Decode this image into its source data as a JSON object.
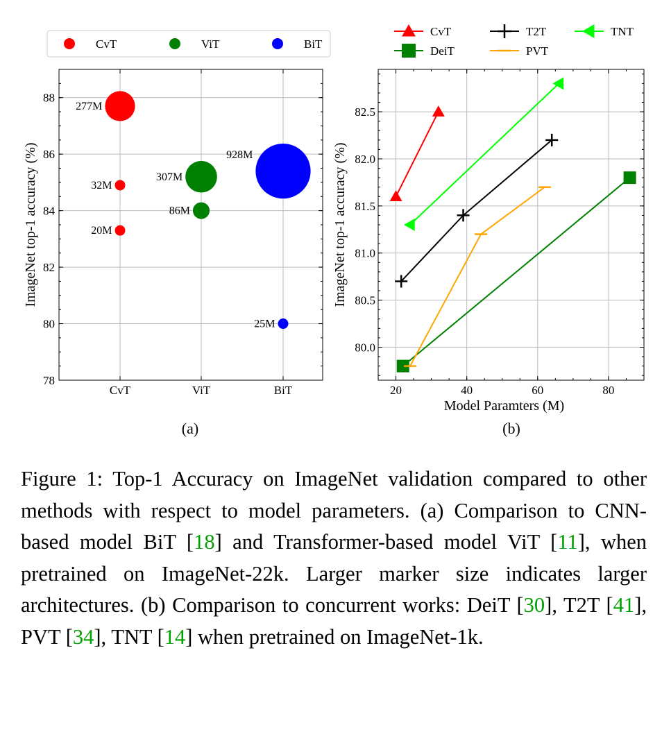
{
  "chart_data": [
    {
      "type": "scatter",
      "panel_label": "(a)",
      "ylabel": "ImageNet top-1 accuracy (%)",
      "xlabel": "",
      "categories": [
        "CvT",
        "ViT",
        "BiT"
      ],
      "ylim": [
        78,
        89
      ],
      "y_ticks": [
        78,
        80,
        82,
        84,
        86,
        88
      ],
      "grid": true,
      "legend": {
        "placement": "top",
        "entries": [
          {
            "name": "CvT",
            "color": "#ff0000"
          },
          {
            "name": "ViT",
            "color": "#008000"
          },
          {
            "name": "BiT",
            "color": "#0000ff"
          }
        ]
      },
      "series": [
        {
          "name": "CvT",
          "color": "#ff0000",
          "points": [
            {
              "category": "CvT",
              "y": 87.7,
              "params_m": 277,
              "label": "277M"
            },
            {
              "category": "CvT",
              "y": 84.9,
              "params_m": 32,
              "label": "32M"
            },
            {
              "category": "CvT",
              "y": 83.3,
              "params_m": 20,
              "label": "20M"
            }
          ]
        },
        {
          "name": "ViT",
          "color": "#008000",
          "points": [
            {
              "category": "ViT",
              "y": 85.2,
              "params_m": 307,
              "label": "307M"
            },
            {
              "category": "ViT",
              "y": 84.0,
              "params_m": 86,
              "label": "86M"
            }
          ]
        },
        {
          "name": "BiT",
          "color": "#0000ff",
          "points": [
            {
              "category": "BiT",
              "y": 85.4,
              "params_m": 928,
              "label": "928M"
            },
            {
              "category": "BiT",
              "y": 80.0,
              "params_m": 25,
              "label": "25M"
            }
          ]
        }
      ]
    },
    {
      "type": "line",
      "panel_label": "(b)",
      "xlabel": "Model Paramters (M)",
      "ylabel": "ImageNet top-1 accuracy (%)",
      "xlim": [
        15,
        90
      ],
      "ylim": [
        79.65,
        82.95
      ],
      "x_ticks": [
        20,
        40,
        60,
        80
      ],
      "y_ticks": [
        80.0,
        80.5,
        81.0,
        81.5,
        82.0,
        82.5
      ],
      "y_tick_labels": [
        "80.0",
        "80.5",
        "81.0",
        "81.5",
        "82.0",
        "82.5"
      ],
      "grid": true,
      "legend": {
        "placement": "top",
        "columns": 3
      },
      "series": [
        {
          "name": "CvT",
          "color": "#ff0000",
          "marker": "triangle-up",
          "x": [
            20,
            32
          ],
          "y": [
            81.6,
            82.5
          ]
        },
        {
          "name": "DeiT",
          "color": "#008000",
          "marker": "square",
          "x": [
            22,
            86
          ],
          "y": [
            79.8,
            81.8
          ]
        },
        {
          "name": "T2T",
          "color": "#000000",
          "marker": "plus",
          "x": [
            21.5,
            39,
            64
          ],
          "y": [
            80.7,
            81.4,
            82.2
          ]
        },
        {
          "name": "PVT",
          "color": "#ffa500",
          "marker": "tick",
          "x": [
            24,
            44,
            62
          ],
          "y": [
            79.8,
            81.2,
            81.7
          ]
        },
        {
          "name": "TNT",
          "color": "#00ff00",
          "marker": "triangle-left",
          "x": [
            24,
            66
          ],
          "y": [
            81.3,
            82.8
          ]
        }
      ]
    }
  ],
  "caption": {
    "parts": [
      {
        "t": "Figure 1: Top-1 Accuracy on ImageNet validation compared to other methods with respect to model parameters. (a) Comparison to CNN-based model BiT [",
        "ref": false
      },
      {
        "t": "18",
        "ref": true
      },
      {
        "t": "] and Transformer-based model ViT [",
        "ref": false
      },
      {
        "t": "11",
        "ref": true
      },
      {
        "t": "], when pretrained on ImageNet-22k. Larger marker size indicates larger architectures. (b) Comparison to concurrent works: DeiT [",
        "ref": false
      },
      {
        "t": "30",
        "ref": true
      },
      {
        "t": "], T2T [",
        "ref": false
      },
      {
        "t": "41",
        "ref": true
      },
      {
        "t": "], PVT [",
        "ref": false
      },
      {
        "t": "34",
        "ref": true
      },
      {
        "t": "], TNT [",
        "ref": false
      },
      {
        "t": "14",
        "ref": true
      },
      {
        "t": "] when pretrained on ImageNet-1k.",
        "ref": false
      }
    ]
  }
}
